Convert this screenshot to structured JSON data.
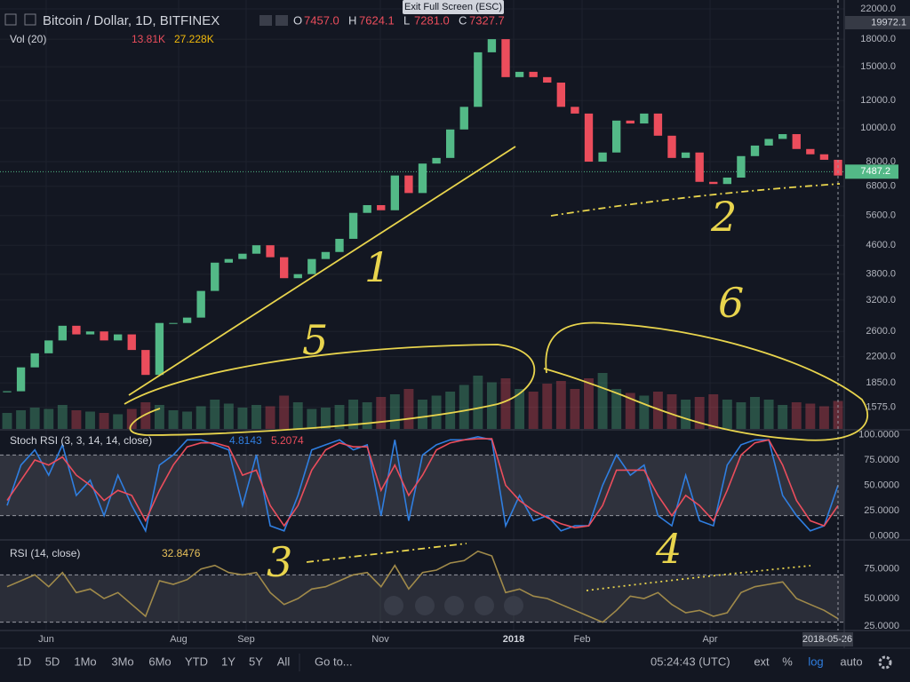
{
  "header": {
    "symbol": "Bitcoin / Dollar, 1D, BITFINEX",
    "ohlc": [
      {
        "label": "O",
        "value": "7457.0"
      },
      {
        "label": "H",
        "value": "7624.1"
      },
      {
        "label": "L",
        "value": "7281.0"
      },
      {
        "label": "C",
        "value": "7327.7"
      }
    ]
  },
  "tooltip": "Exit Full Screen (ESC)",
  "volume_legend": {
    "label": "Vol (20)",
    "values": [
      "13.81K",
      "27.228K"
    ]
  },
  "price_axis": {
    "log": true,
    "ylim": [
      1364,
      22650
    ],
    "ticks": [
      {
        "value": 22000,
        "label": "22000.0"
      },
      {
        "value": 18000,
        "label": "18000.0"
      },
      {
        "value": 15000,
        "label": "15000.0"
      },
      {
        "value": 12000,
        "label": "12000.0"
      },
      {
        "value": 10000,
        "label": "10000.0"
      },
      {
        "value": 8000,
        "label": "8000.0"
      },
      {
        "value": 6800,
        "label": "6800.0"
      },
      {
        "value": 5600,
        "label": "5600.0"
      },
      {
        "value": 4600,
        "label": "4600.0"
      },
      {
        "value": 3800,
        "label": "3800.0"
      },
      {
        "value": 3200,
        "label": "3200.0"
      },
      {
        "value": 2600,
        "label": "2600.0"
      },
      {
        "value": 2200,
        "label": "2200.0"
      },
      {
        "value": 1850,
        "label": "1850.0"
      },
      {
        "value": 1575,
        "label": "1575.0"
      }
    ],
    "top_label": "19972.1",
    "last_price": "7487.2"
  },
  "candles": {
    "up_color": "#53b987",
    "down_color": "#eb4d5c",
    "closes": [
      1750,
      2050,
      2250,
      2450,
      2700,
      2550,
      2600,
      2450,
      2550,
      2300,
      1950,
      2750,
      2750,
      2850,
      3400,
      4100,
      4200,
      4350,
      4600,
      4250,
      3700,
      3800,
      4200,
      4400,
      4800,
      5700,
      6000,
      5800,
      7300,
      6500,
      7900,
      8200,
      9900,
      11500,
      16500,
      18000,
      14000,
      14500,
      14000,
      13500,
      11500,
      11000,
      8000,
      8500,
      10500,
      10300,
      11000,
      9500,
      8200,
      8500,
      7000,
      6900,
      7200,
      8300,
      8900,
      9300,
      9600,
      8700,
      8400,
      8100,
      7300
    ]
  },
  "volume": {
    "vlim": [
      0,
      80
    ],
    "values": [
      12,
      14,
      16,
      15,
      18,
      14,
      13,
      12,
      11,
      15,
      20,
      18,
      14,
      13,
      17,
      22,
      19,
      16,
      18,
      17,
      25,
      20,
      15,
      16,
      18,
      22,
      20,
      24,
      26,
      30,
      22,
      25,
      28,
      33,
      40,
      35,
      38,
      30,
      28,
      34,
      36,
      30,
      38,
      42,
      30,
      27,
      25,
      28,
      26,
      22,
      24,
      26,
      22,
      20,
      24,
      22,
      18,
      20,
      19,
      17,
      21
    ]
  },
  "stoch": {
    "title": "Stoch RSI (3, 3, 14, 14, close)",
    "values": [
      "4.8143",
      "5.2074"
    ],
    "ylim": [
      -4,
      104
    ],
    "bands": [
      80,
      20
    ],
    "ticks": [
      {
        "value": 100,
        "label": "100.0000"
      },
      {
        "value": 75,
        "label": "75.0000"
      },
      {
        "value": 50,
        "label": "50.0000"
      },
      {
        "value": 25,
        "label": "25.0000"
      },
      {
        "value": 0,
        "label": "0.0000"
      }
    ],
    "k": [
      30,
      70,
      85,
      60,
      90,
      40,
      55,
      20,
      60,
      30,
      5,
      70,
      80,
      95,
      95,
      90,
      85,
      30,
      80,
      10,
      5,
      40,
      85,
      90,
      95,
      85,
      90,
      20,
      95,
      15,
      80,
      90,
      95,
      95,
      98,
      95,
      10,
      40,
      15,
      20,
      5,
      10,
      10,
      50,
      80,
      60,
      70,
      20,
      10,
      60,
      15,
      10,
      70,
      90,
      95,
      95,
      40,
      20,
      5,
      10,
      50
    ],
    "d": [
      35,
      55,
      75,
      70,
      78,
      60,
      50,
      35,
      45,
      40,
      15,
      45,
      70,
      88,
      92,
      92,
      88,
      60,
      65,
      30,
      10,
      30,
      65,
      85,
      92,
      88,
      88,
      45,
      70,
      40,
      60,
      85,
      92,
      95,
      96,
      96,
      50,
      35,
      25,
      18,
      12,
      8,
      10,
      30,
      65,
      65,
      65,
      40,
      20,
      40,
      30,
      15,
      45,
      80,
      92,
      95,
      70,
      35,
      15,
      10,
      30
    ]
  },
  "rsi": {
    "title": "RSI (14, close)",
    "value": "32.8476",
    "ylim": [
      23,
      98
    ],
    "bands": [
      70,
      30
    ],
    "ticks": [
      {
        "value": 75,
        "label": "75.0000"
      },
      {
        "value": 50,
        "label": "50.0000"
      },
      {
        "value": 25,
        "label": "25.0000"
      }
    ],
    "values": [
      60,
      65,
      70,
      60,
      72,
      55,
      58,
      50,
      55,
      45,
      35,
      65,
      62,
      66,
      75,
      78,
      72,
      70,
      72,
      55,
      45,
      50,
      58,
      60,
      65,
      70,
      72,
      60,
      78,
      58,
      72,
      74,
      80,
      82,
      90,
      86,
      55,
      58,
      52,
      50,
      45,
      40,
      35,
      30,
      40,
      52,
      50,
      55,
      45,
      38,
      40,
      35,
      38,
      55,
      60,
      62,
      64,
      50,
      45,
      40,
      33
    ]
  },
  "time_axis": {
    "labels": [
      "Jun",
      "Aug",
      "Sep",
      "Nov",
      "2018",
      "Feb",
      "Apr"
    ],
    "cursor": "2018-05-26"
  },
  "toolbar": {
    "ranges": [
      "1D",
      "5D",
      "1Mo",
      "3Mo",
      "6Mo",
      "YTD",
      "1Y",
      "5Y",
      "All"
    ],
    "goto": "Go to...",
    "clock": "05:24:43 (UTC)",
    "options": [
      "ext",
      "%",
      "log",
      "auto"
    ]
  },
  "annotations": [
    "1",
    "2",
    "3",
    "4",
    "5",
    "6"
  ]
}
